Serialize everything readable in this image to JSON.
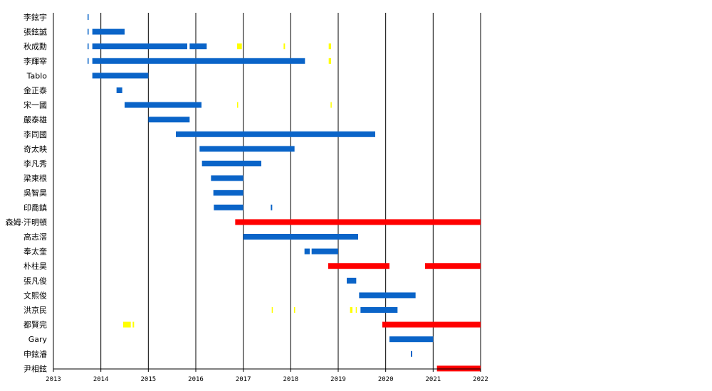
{
  "chart_data": {
    "type": "timeline",
    "x_range": [
      2013,
      2022
    ],
    "x_ticks": [
      "2013",
      "2014",
      "2015",
      "2016",
      "2017",
      "2018",
      "2019",
      "2020",
      "2021",
      "2022"
    ],
    "grid": "vertical-year-lines",
    "colors": {
      "blue": "#0a64c8",
      "red": "#ff0000",
      "yellow": "#ffff00"
    },
    "rows": [
      {
        "name": "李鉉宇",
        "segments": [
          {
            "start": 2013.72,
            "end": 2013.74,
            "color": "blue"
          }
        ]
      },
      {
        "name": "張鉉誠",
        "segments": [
          {
            "start": 2013.72,
            "end": 2013.74,
            "color": "blue"
          },
          {
            "start": 2013.82,
            "end": 2014.5,
            "color": "blue"
          }
        ]
      },
      {
        "name": "秋成勳",
        "segments": [
          {
            "start": 2013.72,
            "end": 2013.74,
            "color": "blue"
          },
          {
            "start": 2013.82,
            "end": 2015.82,
            "color": "blue"
          },
          {
            "start": 2015.87,
            "end": 2016.23,
            "color": "blue"
          },
          {
            "start": 2016.87,
            "end": 2016.97,
            "color": "yellow"
          },
          {
            "start": 2017.85,
            "end": 2017.88,
            "color": "yellow"
          },
          {
            "start": 2018.8,
            "end": 2018.85,
            "color": "yellow"
          }
        ]
      },
      {
        "name": "李輝宰",
        "segments": [
          {
            "start": 2013.72,
            "end": 2013.74,
            "color": "blue"
          },
          {
            "start": 2013.82,
            "end": 2018.3,
            "color": "blue"
          },
          {
            "start": 2018.8,
            "end": 2018.85,
            "color": "yellow"
          }
        ]
      },
      {
        "name": "Tablo",
        "segments": [
          {
            "start": 2013.82,
            "end": 2015.0,
            "color": "blue"
          }
        ]
      },
      {
        "name": "金正泰",
        "segments": [
          {
            "start": 2014.33,
            "end": 2014.45,
            "color": "blue"
          }
        ]
      },
      {
        "name": "宋一國",
        "segments": [
          {
            "start": 2014.5,
            "end": 2016.12,
            "color": "blue"
          },
          {
            "start": 2016.87,
            "end": 2016.89,
            "color": "yellow"
          },
          {
            "start": 2018.84,
            "end": 2018.86,
            "color": "yellow"
          }
        ]
      },
      {
        "name": "嚴泰雄",
        "segments": [
          {
            "start": 2015.0,
            "end": 2015.87,
            "color": "blue"
          }
        ]
      },
      {
        "name": "李同國",
        "segments": [
          {
            "start": 2015.58,
            "end": 2019.78,
            "color": "blue"
          }
        ]
      },
      {
        "name": "奇太映",
        "segments": [
          {
            "start": 2016.08,
            "end": 2018.08,
            "color": "blue"
          }
        ]
      },
      {
        "name": "李凡秀",
        "segments": [
          {
            "start": 2016.13,
            "end": 2017.38,
            "color": "blue"
          }
        ]
      },
      {
        "name": "梁東根",
        "segments": [
          {
            "start": 2016.32,
            "end": 2017.0,
            "color": "blue"
          }
        ]
      },
      {
        "name": "吳智昊",
        "segments": [
          {
            "start": 2016.37,
            "end": 2017.0,
            "color": "blue"
          }
        ]
      },
      {
        "name": "印喬鎮",
        "segments": [
          {
            "start": 2016.38,
            "end": 2017.0,
            "color": "blue"
          },
          {
            "start": 2017.58,
            "end": 2017.61,
            "color": "blue"
          }
        ]
      },
      {
        "name": "森姆·汗明頓",
        "segments": [
          {
            "start": 2016.83,
            "end": 2022.0,
            "color": "red"
          }
        ]
      },
      {
        "name": "高志滘",
        "segments": [
          {
            "start": 2017.0,
            "end": 2019.42,
            "color": "blue"
          }
        ]
      },
      {
        "name": "奉太奎",
        "segments": [
          {
            "start": 2018.29,
            "end": 2018.4,
            "color": "blue"
          },
          {
            "start": 2018.44,
            "end": 2019.0,
            "color": "blue"
          }
        ]
      },
      {
        "name": "朴柱昊",
        "segments": [
          {
            "start": 2018.79,
            "end": 2020.08,
            "color": "red"
          },
          {
            "start": 2020.83,
            "end": 2022.0,
            "color": "red"
          }
        ]
      },
      {
        "name": "張凡俊",
        "segments": [
          {
            "start": 2019.18,
            "end": 2019.38,
            "color": "blue"
          }
        ]
      },
      {
        "name": "文熙俊",
        "segments": [
          {
            "start": 2019.44,
            "end": 2020.63,
            "color": "blue"
          }
        ]
      },
      {
        "name": "洪京民",
        "segments": [
          {
            "start": 2017.6,
            "end": 2017.62,
            "color": "yellow"
          },
          {
            "start": 2018.07,
            "end": 2018.09,
            "color": "yellow"
          },
          {
            "start": 2019.25,
            "end": 2019.3,
            "color": "yellow"
          },
          {
            "start": 2019.37,
            "end": 2019.39,
            "color": "yellow"
          },
          {
            "start": 2019.47,
            "end": 2020.25,
            "color": "blue"
          }
        ]
      },
      {
        "name": "都賢完",
        "segments": [
          {
            "start": 2014.47,
            "end": 2014.63,
            "color": "yellow"
          },
          {
            "start": 2014.67,
            "end": 2014.7,
            "color": "yellow"
          },
          {
            "start": 2019.93,
            "end": 2022.0,
            "color": "red"
          }
        ]
      },
      {
        "name": "Gary",
        "segments": [
          {
            "start": 2020.08,
            "end": 2021.0,
            "color": "blue"
          }
        ]
      },
      {
        "name": "申鉉濬",
        "segments": [
          {
            "start": 2020.53,
            "end": 2020.56,
            "color": "blue"
          }
        ]
      },
      {
        "name": "尹相鉉",
        "segments": [
          {
            "start": 2021.08,
            "end": 2022.0,
            "color": "red"
          }
        ]
      }
    ]
  }
}
